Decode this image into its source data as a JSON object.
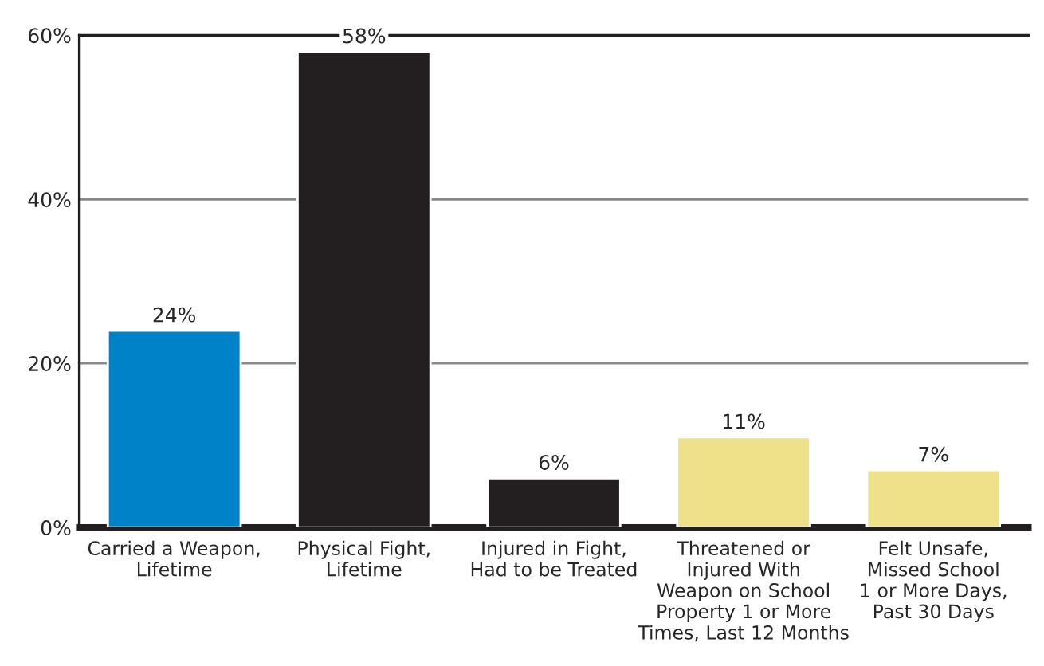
{
  "chart_data": {
    "type": "bar",
    "categories": [
      "Carried a Weapon,\nLifetime",
      "Physical Fight,\nLifetime",
      "Injured in Fight,\nHad to be Treated",
      "Threatened or\nInjured With\nWeapon on School\nProperty 1 or More\nTimes, Last 12 Months",
      "Felt Unsafe,\nMissed School\n1 or More Days,\nPast 30 Days"
    ],
    "values": [
      24,
      58,
      6,
      11,
      7
    ],
    "colors": [
      "#0082c8",
      "#231f20",
      "#231f20",
      "#efe08a",
      "#efe08a"
    ],
    "value_labels": [
      "24%",
      "58%",
      "6%",
      "11%",
      "7%"
    ],
    "ylim": [
      0,
      60
    ],
    "yticks": [
      {
        "value": 0,
        "label": "0%"
      },
      {
        "value": 20,
        "label": "20%"
      },
      {
        "value": 40,
        "label": "40%"
      },
      {
        "value": 60,
        "label": "60%"
      }
    ],
    "grid": "y",
    "legend": false
  }
}
